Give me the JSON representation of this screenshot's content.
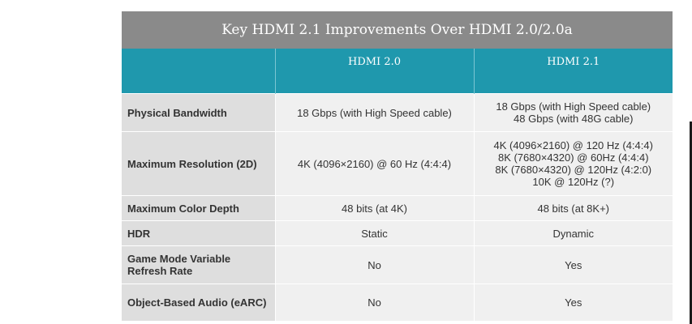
{
  "title": "Key HDMI 2.1 Improvements Over HDMI 2.0/2.0a",
  "columns": [
    "",
    "HDMI 2.0",
    "HDMI 2.1"
  ],
  "rows": [
    {
      "label": "Physical Bandwidth",
      "hdmi20": [
        "18 Gbps (with High Speed cable)"
      ],
      "hdmi21": [
        "18 Gbps (with High Speed cable)",
        "48 Gbps (with 48G cable)"
      ]
    },
    {
      "label": "Maximum Resolution (2D)",
      "hdmi20": [
        "4K (4096×2160) @ 60 Hz (4:4:4)"
      ],
      "hdmi21": [
        "4K (4096×2160) @ 120 Hz (4:4:4)",
        "8K (7680×4320) @ 60Hz (4:4:4)",
        "8K (7680×4320) @ 120Hz (4:2:0)",
        "10K @ 120Hz (?)"
      ]
    },
    {
      "label": "Maximum Color Depth",
      "hdmi20": [
        "48 bits (at 4K)"
      ],
      "hdmi21": [
        "48 bits (at 8K+)"
      ]
    },
    {
      "label": "HDR",
      "hdmi20": [
        "Static"
      ],
      "hdmi21": [
        "Dynamic"
      ]
    },
    {
      "label": "Game Mode Variable Refresh Rate",
      "hdmi20": [
        "No"
      ],
      "hdmi21": [
        "Yes"
      ]
    },
    {
      "label": "Object-Based Audio (eARC)",
      "hdmi20": [
        "No"
      ],
      "hdmi21": [
        "Yes"
      ]
    }
  ],
  "colors": {
    "title_bg": "#8a8a8a",
    "header_bg": "#1f98ad",
    "label_bg": "#dedede",
    "value_bg": "#f0f0f0"
  }
}
